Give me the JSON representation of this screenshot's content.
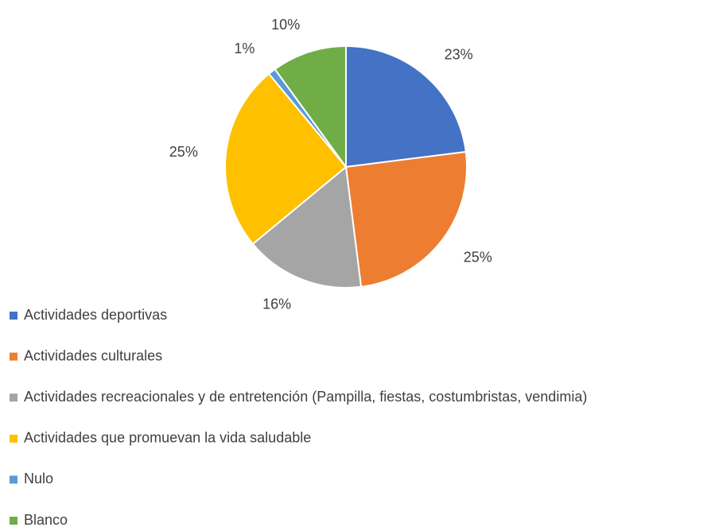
{
  "chart_data": {
    "type": "pie",
    "categories": [
      "Actividades deportivas",
      "Actividades culturales",
      "Actividades recreacionales y de entretención (Pampilla, fiestas, costumbristas, vendimia)",
      "Actividades que promuevan la vida saludable",
      "Nulo",
      "Blanco"
    ],
    "values": [
      23,
      25,
      16,
      25,
      1,
      10
    ],
    "value_labels": [
      "23%",
      "25%",
      "16%",
      "25%",
      "1%",
      "10%"
    ],
    "colors": [
      "#4472c4",
      "#ed7d31",
      "#a5a5a5",
      "#ffc000",
      "#5b9bd5",
      "#70ad47"
    ],
    "legend": "bottom-left"
  }
}
